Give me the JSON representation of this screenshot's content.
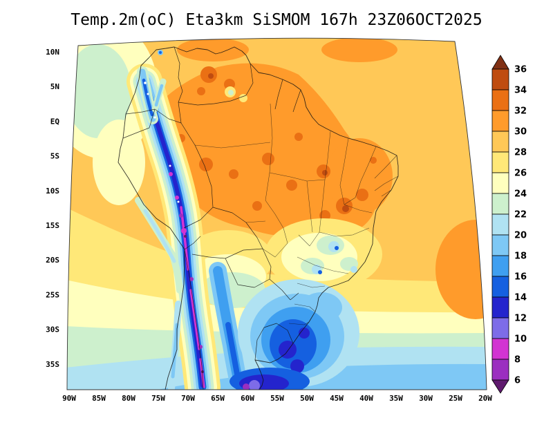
{
  "title": "Temp.2m(oC) Eta3km SiSMOM 167h 23Z06OCT2025",
  "chart_data": {
    "type": "heatmap",
    "title": "Temp.2m(oC) Eta3km SiSMOM 167h 23Z06OCT2025",
    "variable": "Temp.2m",
    "units": "oC",
    "model": "Eta3km",
    "system": "SiSMOM",
    "forecast_hour": "167h",
    "valid_time": "23Z06OCT2025",
    "region": "South America",
    "grid": false,
    "x_ticks": [
      "90W",
      "85W",
      "80W",
      "75W",
      "70W",
      "65W",
      "60W",
      "55W",
      "50W",
      "45W",
      "40W",
      "35W",
      "30W",
      "25W",
      "20W"
    ],
    "y_ticks": [
      "10N",
      "5N",
      "EQ",
      "5S",
      "10S",
      "15S",
      "20S",
      "25S",
      "30S",
      "35S"
    ],
    "colorbar": {
      "orientation": "vertical-right",
      "levels": [
        6,
        8,
        10,
        12,
        14,
        16,
        18,
        20,
        22,
        24,
        26,
        28,
        30,
        32,
        34,
        36
      ],
      "colors": [
        "#5f1a6e",
        "#9b2fc0",
        "#d234d2",
        "#7d6ce8",
        "#2424cd",
        "#1560e0",
        "#3f9ff0",
        "#7ec8f5",
        "#b0e2f2",
        "#cdf0cd",
        "#ffffbe",
        "#ffe878",
        "#ffc857",
        "#ff9b2b",
        "#ea7014",
        "#bf4c10",
        "#803014"
      ]
    }
  }
}
